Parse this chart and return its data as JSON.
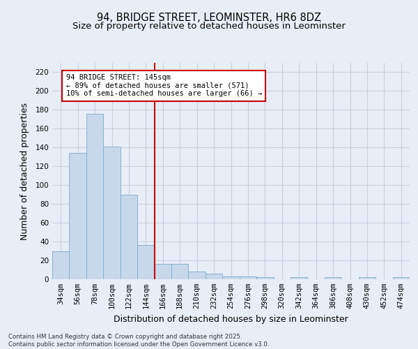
{
  "title1": "94, BRIDGE STREET, LEOMINSTER, HR6 8DZ",
  "title2": "Size of property relative to detached houses in Leominster",
  "xlabel": "Distribution of detached houses by size in Leominster",
  "ylabel": "Number of detached properties",
  "categories": [
    "34sqm",
    "56sqm",
    "78sqm",
    "100sqm",
    "122sqm",
    "144sqm",
    "166sqm",
    "188sqm",
    "210sqm",
    "232sqm",
    "254sqm",
    "276sqm",
    "298sqm",
    "320sqm",
    "342sqm",
    "364sqm",
    "386sqm",
    "408sqm",
    "430sqm",
    "452sqm",
    "474sqm"
  ],
  "values": [
    30,
    134,
    176,
    141,
    90,
    36,
    16,
    16,
    8,
    6,
    3,
    3,
    2,
    0,
    2,
    0,
    2,
    0,
    2,
    0,
    2
  ],
  "bar_color": "#c8d8eb",
  "bar_edge_color": "#7aaac8",
  "vline_color": "#cc0000",
  "annotation_line1": "94 BRIDGE STREET: 145sqm",
  "annotation_line2": "← 89% of detached houses are smaller (571)",
  "annotation_line3": "10% of semi-detached houses are larger (66) →",
  "annotation_box_color": "#cc0000",
  "ylim": [
    0,
    230
  ],
  "yticks": [
    0,
    20,
    40,
    60,
    80,
    100,
    120,
    140,
    160,
    180,
    200,
    220
  ],
  "grid_color": "#c8cfe0",
  "bg_color": "#e8eef8",
  "plot_bg_color": "#e8eef8",
  "title1_fontsize": 10.5,
  "title2_fontsize": 9.5,
  "footer_text": "Contains HM Land Registry data © Crown copyright and database right 2025.\nContains public sector information licensed under the Open Government Licence v3.0."
}
